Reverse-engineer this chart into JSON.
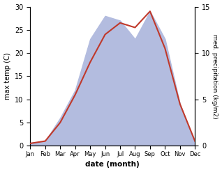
{
  "months": [
    "Jan",
    "Feb",
    "Mar",
    "Apr",
    "May",
    "Jun",
    "Jul",
    "Aug",
    "Sep",
    "Oct",
    "Nov",
    "Dec"
  ],
  "temperature": [
    0.5,
    1.0,
    5.0,
    11.0,
    18.0,
    24.0,
    26.5,
    25.5,
    29.0,
    21.0,
    9.0,
    1.0
  ],
  "precipitation": [
    0.3,
    0.5,
    3.0,
    6.0,
    11.5,
    14.0,
    13.5,
    11.5,
    14.5,
    11.5,
    4.5,
    0.3
  ],
  "temp_color": "#c0392b",
  "precip_fill_color": "#b3bcdf",
  "temp_ylim": [
    0,
    30
  ],
  "precip_ylim": [
    0,
    15
  ],
  "ylabel_left": "max temp (C)",
  "ylabel_right": "med. precipitation (kg/m2)",
  "xlabel": "date (month)",
  "fig_width": 3.18,
  "fig_height": 2.47,
  "dpi": 100
}
